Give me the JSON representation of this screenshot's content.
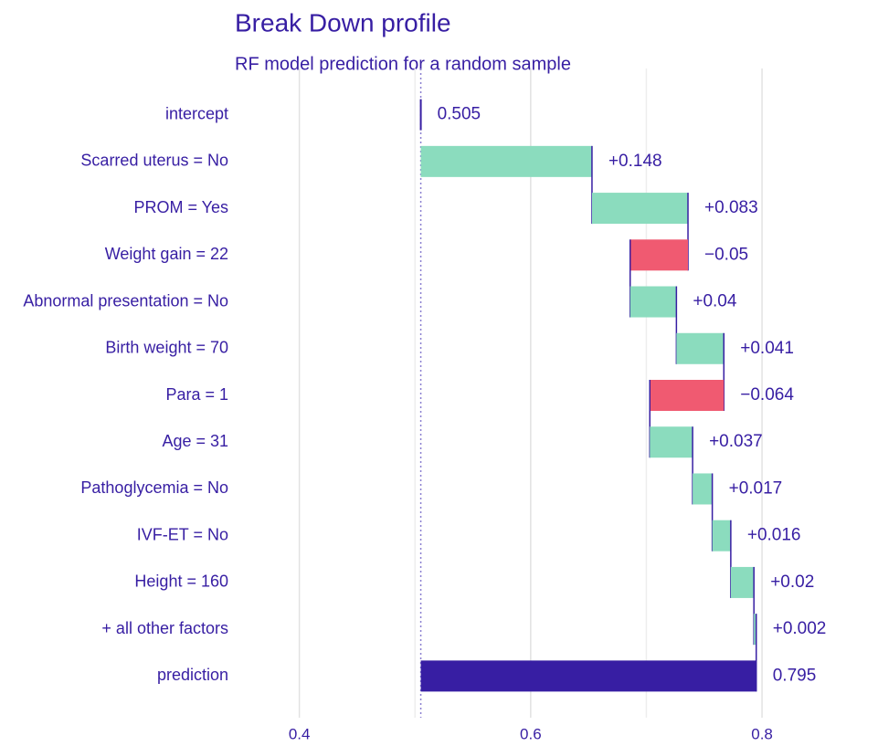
{
  "chart_data": {
    "type": "breakdown",
    "title": "Break Down profile",
    "subtitle": "RF model prediction for a random sample",
    "categories": [
      "intercept",
      "Scarred uterus = No",
      "PROM = Yes",
      "Weight gain = 22",
      "Abnormal presentation = No",
      "Birth weight = 70",
      "Para = 1",
      "Age = 31",
      "Pathoglycemia = No",
      "IVF-ET = No",
      "Height = 160",
      "+ all other factors",
      "prediction"
    ],
    "values": [
      0.505,
      0.148,
      0.083,
      -0.05,
      0.04,
      0.041,
      -0.064,
      0.037,
      0.017,
      0.016,
      0.02,
      0.002,
      0.795
    ],
    "value_labels": [
      "0.505",
      "+0.148",
      "+0.083",
      "−0.05",
      "+0.04",
      "+0.041",
      "−0.064",
      "+0.037",
      "+0.017",
      "+0.016",
      "+0.02",
      "+0.002",
      "0.795"
    ],
    "colors": {
      "positive": "#8bdcbe",
      "negative": "#f05a71",
      "prediction": "#371ea3",
      "text": "#371ea3"
    },
    "xlim": [
      0.345,
      0.89
    ],
    "xticks": [
      0.4,
      0.6,
      0.8
    ],
    "minor_xticks": [
      0.5,
      0.7
    ],
    "grid": true
  }
}
